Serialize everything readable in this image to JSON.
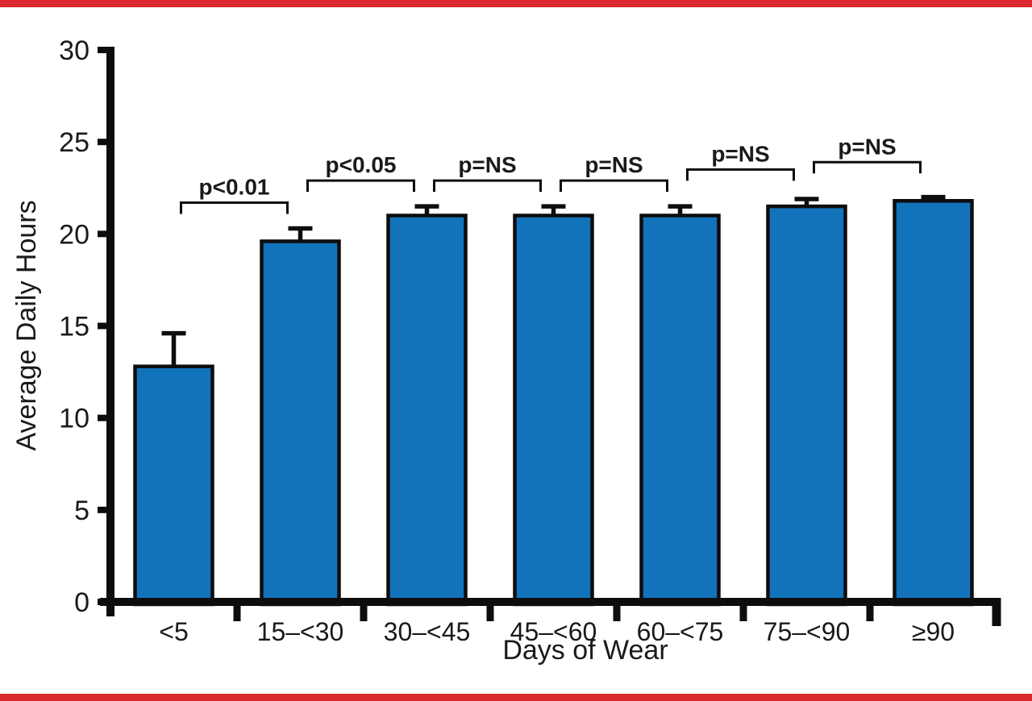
{
  "figure": {
    "background": "#ffffff",
    "top_rule_color": "#da2a2d",
    "bottom_rule_color": "#da2a2d"
  },
  "chart_data": {
    "type": "bar",
    "title": "",
    "xlabel": "Days of Wear",
    "ylabel": "Average Daily Hours",
    "categories": [
      "<5",
      "15–<30",
      "30–<45",
      "45–<60",
      "60–<75",
      "75–<90",
      "≥90"
    ],
    "values": [
      12.8,
      19.6,
      21.0,
      21.0,
      21.0,
      21.5,
      21.8
    ],
    "error_bars_plus": [
      1.8,
      0.7,
      0.5,
      0.5,
      0.5,
      0.4,
      0.2
    ],
    "ylim": [
      0,
      30
    ],
    "yticks": [
      0,
      5,
      10,
      15,
      20,
      25,
      30
    ],
    "grid": false,
    "legend": null,
    "bar_color": "#1273bb",
    "bar_outline_color": "#0d0d0d",
    "axis_color": "#0d0d0d",
    "significance_brackets": [
      {
        "between": [
          "<5",
          "15–<30"
        ],
        "left": 0,
        "right": 1,
        "label": "p<0.01",
        "height": 21.7
      },
      {
        "between": [
          "15–<30",
          "30–<45"
        ],
        "left": 1,
        "right": 2,
        "label": "p<0.05",
        "height": 22.9
      },
      {
        "between": [
          "30–<45",
          "45–<60"
        ],
        "left": 2,
        "right": 3,
        "label": "p=NS",
        "height": 22.9
      },
      {
        "between": [
          "45–<60",
          "60–<75"
        ],
        "left": 3,
        "right": 4,
        "label": "p=NS",
        "height": 22.9
      },
      {
        "between": [
          "60–<75",
          "75–<90"
        ],
        "left": 4,
        "right": 5,
        "label": "p=NS",
        "height": 23.5
      },
      {
        "between": [
          "75–<90",
          "≥90"
        ],
        "left": 5,
        "right": 6,
        "label": "p=NS",
        "height": 23.9
      }
    ]
  }
}
